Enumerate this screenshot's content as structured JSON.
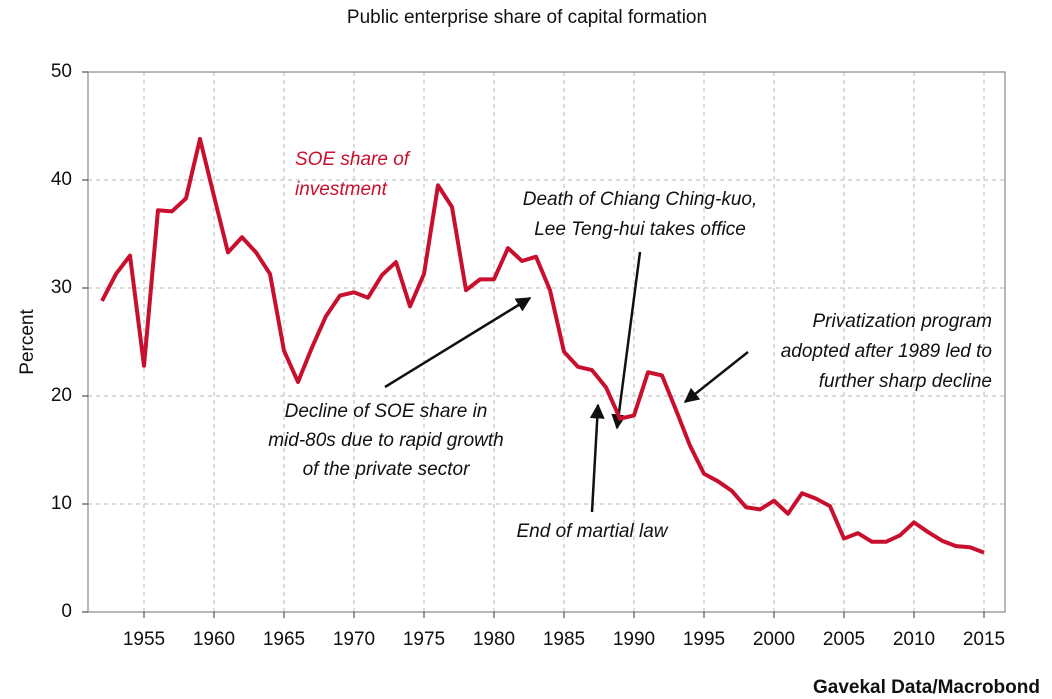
{
  "chart_data": {
    "type": "line",
    "title": "Public enterprise share of capital formation",
    "y_label": "Percent",
    "source": "Gavekal Data/Macrobond",
    "x": [
      1952,
      1953,
      1954,
      1955,
      1956,
      1957,
      1958,
      1959,
      1960,
      1961,
      1962,
      1963,
      1964,
      1965,
      1966,
      1967,
      1968,
      1969,
      1970,
      1971,
      1972,
      1973,
      1974,
      1975,
      1976,
      1977,
      1978,
      1979,
      1980,
      1981,
      1982,
      1983,
      1984,
      1985,
      1986,
      1987,
      1988,
      1989,
      1990,
      1991,
      1992,
      1993,
      1994,
      1995,
      1996,
      1997,
      1998,
      1999,
      2000,
      2001,
      2002,
      2003,
      2004,
      2005,
      2006,
      2007,
      2008,
      2009,
      2010,
      2011,
      2012,
      2013,
      2014,
      2015
    ],
    "series": [
      {
        "label_lines": [
          "SOE share of",
          "investment"
        ],
        "color": "#c8102e",
        "values": [
          28.8,
          31.3,
          33,
          22.8,
          37.2,
          37.1,
          38.3,
          43.8,
          38.5,
          33.3,
          34.7,
          33.3,
          31.3,
          24.2,
          21.3,
          24.5,
          27.4,
          29.3,
          29.6,
          29.1,
          31.2,
          32.4,
          28.3,
          31.3,
          39.5,
          37.5,
          29.8,
          30.8,
          30.8,
          33.7,
          32.5,
          32.9,
          29.8,
          24.1,
          22.7,
          22.4,
          20.8,
          17.9,
          18.2,
          22.2,
          21.9,
          18.7,
          15.4,
          12.8,
          12.1,
          11.2,
          9.7,
          9.5,
          10.3,
          9.1,
          11,
          10.5,
          9.8,
          6.8,
          7.3,
          6.5,
          6.5,
          7.1,
          8.3,
          7.4,
          6.6,
          6.1,
          6.0,
          5.5
        ]
      }
    ],
    "xlim": [
      1951,
      2016.5
    ],
    "xticks": [
      1955,
      1960,
      1965,
      1970,
      1975,
      1980,
      1985,
      1990,
      1995,
      2000,
      2005,
      2010,
      2015
    ],
    "ylim": [
      0,
      50
    ],
    "yticks": [
      0,
      10,
      20,
      30,
      40,
      50
    ],
    "grid": true,
    "annotations": [
      {
        "lines": [
          "Death of Chiang Ching-kuo,",
          "Lee Teng-hui takes office"
        ]
      },
      {
        "lines": [
          "Privatization program",
          "adopted after 1989 led to",
          "further sharp decline"
        ]
      },
      {
        "lines": [
          "Decline of SOE share in",
          "mid-80s due to rapid growth",
          "of the private sector"
        ]
      },
      {
        "lines": [
          "End of martial law"
        ]
      }
    ]
  }
}
